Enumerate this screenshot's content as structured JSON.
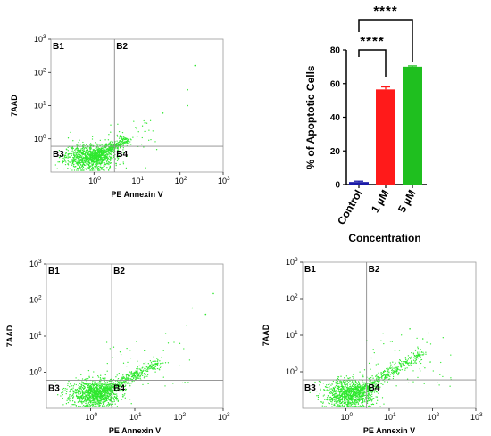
{
  "chart_data": [
    {
      "type": "scatter",
      "xlabel": "PE Annexin V",
      "ylabel": "7AAD",
      "x_scale": "log",
      "y_scale": "log",
      "xlim": [
        0.1,
        1000
      ],
      "ylim": [
        0.1,
        1000
      ],
      "x_ticks": [
        {
          "base": "10",
          "exp": "0"
        },
        {
          "base": "10",
          "exp": "1"
        },
        {
          "base": "10",
          "exp": "2"
        },
        {
          "base": "10",
          "exp": "3"
        }
      ],
      "y_ticks": [
        {
          "base": "10",
          "exp": "0"
        },
        {
          "base": "10",
          "exp": "1"
        },
        {
          "base": "10",
          "exp": "2"
        },
        {
          "base": "10",
          "exp": "3"
        }
      ],
      "gate": {
        "x": 3,
        "y": 0.6
      },
      "quadrants": [
        "B1",
        "B2",
        "B3",
        "B4"
      ],
      "color": "#2ee82e",
      "population": {
        "center_x": 0.8,
        "center_y": 0.28,
        "tail_to_x": 5,
        "tail_to_y": 1.0
      },
      "outliers": [
        [
          40,
          6
        ],
        [
          150,
          30
        ],
        [
          220,
          160
        ],
        [
          150,
          10
        ]
      ]
    },
    {
      "type": "bar",
      "title": "",
      "categories": [
        "Control",
        "1 µM",
        "5 µM"
      ],
      "values": [
        1.5,
        56.5,
        70
      ],
      "errors": [
        0.5,
        1.5,
        0.5
      ],
      "colors": [
        "#1a1aa8",
        "#ff1a1a",
        "#1fbf1f"
      ],
      "ylim": [
        0,
        80
      ],
      "yticks": [
        0,
        20,
        40,
        60,
        80
      ],
      "ylabel": "% of  Apoptotic Cells",
      "xlabel": "Concentration",
      "significance": [
        {
          "from": 0,
          "to": 1,
          "label": "****"
        },
        {
          "from": 0,
          "to": 2,
          "label": "****"
        }
      ]
    },
    {
      "type": "scatter",
      "xlabel": "PE Annexin V",
      "ylabel": "7AAD",
      "x_scale": "log",
      "y_scale": "log",
      "xlim": [
        0.1,
        1000
      ],
      "ylim": [
        0.1,
        1000
      ],
      "x_ticks": [
        {
          "base": "10",
          "exp": "0"
        },
        {
          "base": "10",
          "exp": "1"
        },
        {
          "base": "10",
          "exp": "2"
        },
        {
          "base": "10",
          "exp": "3"
        }
      ],
      "y_ticks": [
        {
          "base": "10",
          "exp": "0"
        },
        {
          "base": "10",
          "exp": "1"
        },
        {
          "base": "10",
          "exp": "2"
        },
        {
          "base": "10",
          "exp": "3"
        }
      ],
      "gate": {
        "x": 3,
        "y": 0.6
      },
      "quadrants": [
        "B1",
        "B2",
        "B3",
        "B4"
      ],
      "color": "#2ee82e",
      "population": {
        "center_x": 1.2,
        "center_y": 0.25,
        "tail_to_x": 30,
        "tail_to_y": 1.8
      },
      "outliers": [
        [
          50,
          12
        ],
        [
          200,
          60
        ],
        [
          400,
          40
        ],
        [
          150,
          20
        ],
        [
          600,
          150
        ]
      ]
    },
    {
      "type": "scatter",
      "xlabel": "PE Annexin V",
      "ylabel": "7AAD",
      "x_scale": "log",
      "y_scale": "log",
      "xlim": [
        0.1,
        1000
      ],
      "ylim": [
        0.1,
        1000
      ],
      "x_ticks": [
        {
          "base": "10",
          "exp": "0"
        },
        {
          "base": "10",
          "exp": "1"
        },
        {
          "base": "10",
          "exp": "2"
        },
        {
          "base": "10",
          "exp": "3"
        }
      ],
      "y_ticks": [
        {
          "base": "10",
          "exp": "0"
        },
        {
          "base": "10",
          "exp": "1"
        },
        {
          "base": "10",
          "exp": "2"
        },
        {
          "base": "10",
          "exp": "3"
        }
      ],
      "gate": {
        "x": 3,
        "y": 0.6
      },
      "quadrants": [
        "B1",
        "B2",
        "B3",
        "B4"
      ],
      "color": "#2ee82e",
      "population": {
        "center_x": 1.2,
        "center_y": 0.25,
        "tail_to_x": 45,
        "tail_to_y": 3
      },
      "outliers": [
        [
          60,
          8
        ],
        [
          30,
          15
        ]
      ]
    }
  ]
}
